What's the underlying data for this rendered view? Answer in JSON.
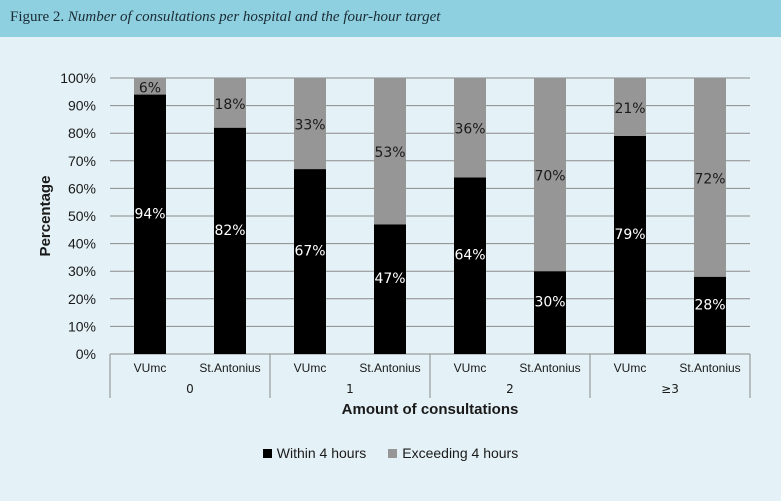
{
  "figure": {
    "label": "Figure 2.",
    "caption": "Number of consultations per hospital and the four-hour target"
  },
  "colors": {
    "within": "#000000",
    "exceeding": "#969696"
  },
  "chart_data": {
    "type": "bar",
    "stacked": true,
    "ylabel": "Percentage",
    "xlabel": "Amount of consultations",
    "ylim": [
      0,
      100
    ],
    "yticks": [
      "0%",
      "10%",
      "20%",
      "30%",
      "40%",
      "50%",
      "60%",
      "70%",
      "80%",
      "90%",
      "100%"
    ],
    "groups": [
      "0",
      "1",
      "2",
      "≥3"
    ],
    "categories": [
      "VUmc",
      "St.Antonius",
      "VUmc",
      "St.Antonius",
      "VUmc",
      "St.Antonius",
      "VUmc",
      "St.Antonius"
    ],
    "series": [
      {
        "name": "Within 4 hours",
        "values": [
          94,
          82,
          67,
          47,
          64,
          30,
          79,
          28
        ],
        "labels": [
          "94%",
          "82%",
          "67%",
          "47%",
          "64%",
          "30%",
          "79%",
          "28%"
        ]
      },
      {
        "name": "Exceeding 4 hours",
        "values": [
          6,
          18,
          33,
          53,
          36,
          70,
          21,
          72
        ],
        "labels": [
          "6%",
          "18%",
          "33%",
          "53%",
          "36%",
          "70%",
          "21%",
          "72%"
        ]
      }
    ],
    "legend_position": "bottom",
    "grid": true
  }
}
